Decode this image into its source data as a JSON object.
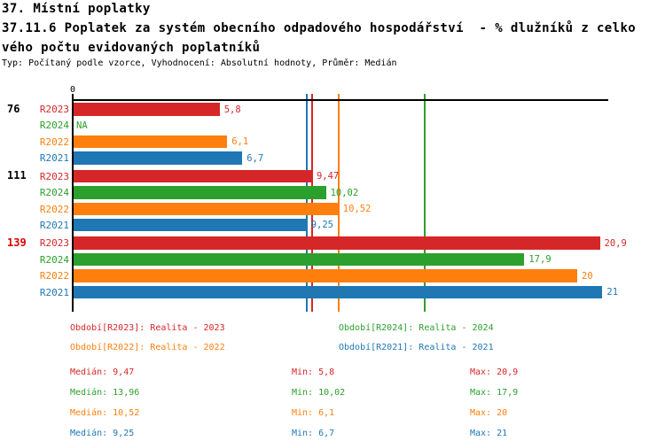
{
  "header": {
    "line1": "37. Místní poplatky",
    "line2": "37.11.6 Poplatek za systém obecního odpadového hospodářství  - % dlužníků z celko",
    "line3": "vého počtu evidovaných poplatníků",
    "meta": "Typ: Počítaný podle vzorce, Vyhodnocení: Absolutní hodnoty, Průměr: Medián"
  },
  "chart_data": {
    "type": "bar",
    "orientation": "horizontal",
    "x_origin_label": "0",
    "xlim": [
      0,
      21.2
    ],
    "series_colors": {
      "R2023": "#d62728",
      "R2024": "#2ca02c",
      "R2022": "#ff7f0e",
      "R2021": "#1f77b4"
    },
    "groups": [
      {
        "label": "76",
        "label_color": "#000000",
        "bars": [
          {
            "series": "R2023",
            "value": 5.8,
            "display": "5,8"
          },
          {
            "series": "R2024",
            "value": null,
            "display": "NA"
          },
          {
            "series": "R2022",
            "value": 6.1,
            "display": "6,1"
          },
          {
            "series": "R2021",
            "value": 6.7,
            "display": "6,7"
          }
        ]
      },
      {
        "label": "111",
        "label_color": "#000000",
        "bars": [
          {
            "series": "R2023",
            "value": 9.47,
            "display": "9,47"
          },
          {
            "series": "R2024",
            "value": 10.02,
            "display": "10,02"
          },
          {
            "series": "R2022",
            "value": 10.52,
            "display": "10,52"
          },
          {
            "series": "R2021",
            "value": 9.25,
            "display": "9,25"
          }
        ]
      },
      {
        "label": "139",
        "label_color": "#dd0000",
        "bars": [
          {
            "series": "R2023",
            "value": 20.9,
            "display": "20,9"
          },
          {
            "series": "R2024",
            "value": 17.9,
            "display": "17,9"
          },
          {
            "series": "R2022",
            "value": 20,
            "display": "20"
          },
          {
            "series": "R2021",
            "value": 21,
            "display": "21"
          }
        ]
      }
    ],
    "median_lines": [
      {
        "series": "R2021",
        "value": 9.25
      },
      {
        "series": "R2023",
        "value": 9.47
      },
      {
        "series": "R2022",
        "value": 10.52
      },
      {
        "series": "R2024",
        "value": 13.96
      }
    ]
  },
  "legend": [
    {
      "series": "R2023",
      "text": "Období[R2023]: Realita - 2023",
      "col": 0,
      "row": 0
    },
    {
      "series": "R2024",
      "text": "Období[R2024]: Realita - 2024",
      "col": 1,
      "row": 0
    },
    {
      "series": "R2022",
      "text": "Období[R2022]: Realita - 2022",
      "col": 0,
      "row": 1
    },
    {
      "series": "R2021",
      "text": "Období[R2021]: Realita - 2021",
      "col": 1,
      "row": 1
    }
  ],
  "stats": [
    {
      "series": "R2023",
      "median": "Medián: 9,47",
      "min": "Min: 5,8",
      "max": "Max: 20,9"
    },
    {
      "series": "R2024",
      "median": "Medián: 13,96",
      "min": "Min: 10,02",
      "max": "Max: 17,9"
    },
    {
      "series": "R2022",
      "median": "Medián: 10,52",
      "min": "Min: 6,1",
      "max": "Max: 20"
    },
    {
      "series": "R2021",
      "median": "Medián: 9,25",
      "min": "Min: 6,7",
      "max": "Max: 21"
    }
  ]
}
